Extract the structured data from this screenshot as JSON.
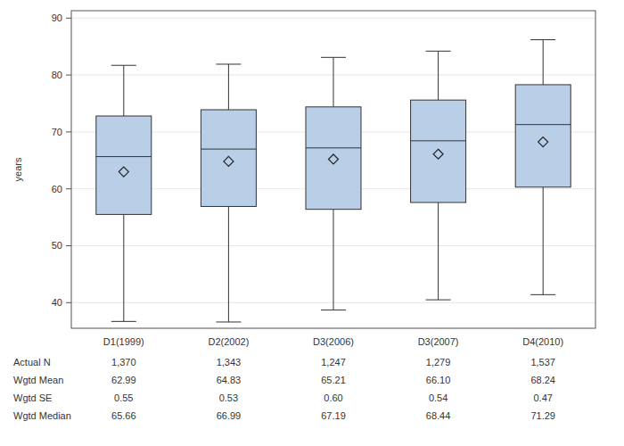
{
  "chart_data": {
    "type": "box",
    "y_label": "years",
    "categories": [
      "D1(1999)",
      "D2(2002)",
      "D3(2006)",
      "D3(2007)",
      "D4(2010)"
    ],
    "color": "#b9cfe8",
    "grid": true,
    "ylim": [
      35.5,
      91.3
    ],
    "yticks": [
      40,
      50,
      60,
      70,
      80,
      90
    ],
    "whisker_low": [
      36.7,
      36.6,
      38.7,
      40.5,
      41.4
    ],
    "q1": [
      55.5,
      56.9,
      56.4,
      57.6,
      60.3
    ],
    "q3": [
      72.8,
      73.9,
      74.4,
      75.6,
      78.3
    ],
    "whisker_high": [
      81.7,
      81.9,
      83.1,
      84.2,
      86.2
    ],
    "table": {
      "rows": [
        {
          "label": "Actual N",
          "values": [
            1370,
            1343,
            1247,
            1279,
            1537
          ],
          "value_labels": [
            "1,370",
            "1,343",
            "1,247",
            "1,279",
            "1,537"
          ]
        },
        {
          "label": "Wgtd Mean",
          "values": [
            62.99,
            64.83,
            65.21,
            66.1,
            68.24
          ],
          "value_labels": [
            "62.99",
            "64.83",
            "65.21",
            "66.10",
            "68.24"
          ]
        },
        {
          "label": "Wgtd SE",
          "values": [
            0.55,
            0.53,
            0.6,
            0.54,
            0.47
          ],
          "value_labels": [
            "0.55",
            "0.53",
            "0.60",
            "0.54",
            "0.47"
          ]
        },
        {
          "label": "Wgtd Median",
          "values": [
            65.66,
            66.99,
            67.19,
            68.44,
            71.29
          ],
          "value_labels": [
            "65.66",
            "66.99",
            "67.19",
            "68.44",
            "71.29"
          ]
        }
      ]
    }
  }
}
